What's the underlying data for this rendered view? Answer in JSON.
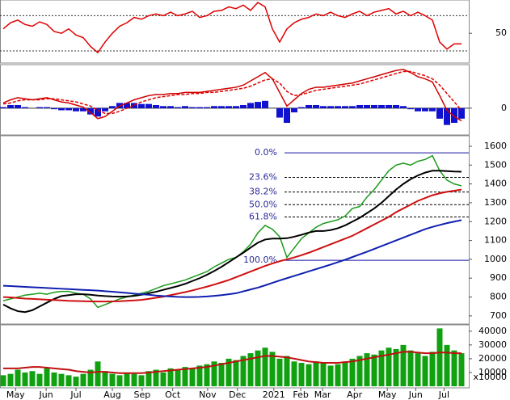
{
  "chart_data": [
    {
      "type": "line",
      "ylim": [
        18,
        86
      ],
      "yticks": [
        50
      ],
      "ref_lines": [
        30,
        70
      ],
      "series": [
        {
          "color": "#e00000",
          "mark": "line",
          "values": [
            55,
            62,
            65,
            60,
            58,
            63,
            60,
            52,
            50,
            55,
            48,
            45,
            35,
            28,
            40,
            50,
            58,
            62,
            68,
            66,
            70,
            72,
            70,
            74,
            70,
            72,
            75,
            68,
            70,
            75,
            76,
            80,
            78,
            82,
            76,
            85,
            80,
            55,
            40,
            55,
            62,
            66,
            68,
            72,
            70,
            74,
            70,
            68,
            72,
            75,
            70,
            74,
            76,
            78,
            72,
            75,
            70,
            74,
            70,
            65,
            40,
            32,
            38,
            38
          ]
        }
      ]
    },
    {
      "type": "line",
      "ylim": [
        -24,
        40
      ],
      "yticks": [
        0
      ],
      "series": [
        {
          "color": "#1010d0",
          "mark": "bar",
          "values": [
            1,
            3,
            3,
            1,
            0,
            1,
            1,
            -1,
            -2,
            -2,
            -3,
            -3,
            -6,
            -8,
            -3,
            2,
            5,
            5,
            5,
            4,
            4,
            3,
            2,
            2,
            1,
            2,
            1,
            1,
            1,
            2,
            2,
            2,
            2,
            3,
            5,
            6,
            7,
            0,
            -9,
            -14,
            -4,
            1,
            3,
            3,
            2,
            2,
            2,
            2,
            2,
            3,
            3,
            3,
            3,
            3,
            3,
            2,
            -1,
            -3,
            -3,
            -3,
            -10,
            -16,
            -14,
            -10
          ]
        },
        {
          "color": "#e00000",
          "mark": "line",
          "style": "dashed",
          "values": [
            4,
            5,
            7,
            8,
            8,
            8,
            9,
            9,
            8,
            7,
            6,
            4,
            2,
            -2,
            -5,
            -5,
            -3,
            0,
            3,
            6,
            8,
            10,
            11,
            12,
            13,
            13,
            14,
            14,
            15,
            15,
            16,
            17,
            18,
            19,
            21,
            24,
            27,
            28,
            24,
            16,
            12,
            13,
            15,
            17,
            18,
            19,
            20,
            21,
            22,
            23,
            25,
            27,
            29,
            31,
            33,
            35,
            35,
            33,
            31,
            28,
            22,
            14,
            6,
            -2
          ]
        },
        {
          "color": "#d00000",
          "mark": "line",
          "values": [
            5,
            8,
            10,
            9,
            8,
            9,
            10,
            8,
            6,
            5,
            3,
            1,
            -4,
            -10,
            -8,
            -3,
            2,
            5,
            8,
            10,
            12,
            13,
            13,
            14,
            14,
            15,
            15,
            15,
            16,
            17,
            18,
            19,
            20,
            22,
            26,
            30,
            34,
            28,
            15,
            2,
            8,
            14,
            18,
            20,
            20,
            21,
            22,
            23,
            24,
            26,
            28,
            30,
            32,
            34,
            36,
            37,
            34,
            30,
            28,
            25,
            12,
            -2,
            -8,
            -12
          ]
        }
      ]
    },
    {
      "type": "line",
      "ylim": [
        661,
        1647
      ],
      "yticks": [
        700,
        800,
        900,
        1000,
        1100,
        1200,
        1300,
        1400,
        1500,
        1600
      ],
      "fib_levels": [
        {
          "label": "0.0%",
          "value": 1565,
          "color": "#1010a0",
          "style": "solid"
        },
        {
          "label": "23.6%",
          "value": 1435,
          "color": "#000000",
          "style": "dashed"
        },
        {
          "label": "38.2%",
          "value": 1357,
          "color": "#000000",
          "style": "dashed"
        },
        {
          "label": "50.0%",
          "value": 1290,
          "color": "#000000",
          "style": "dashed"
        },
        {
          "label": "61.8%",
          "value": 1225,
          "color": "#000000",
          "style": "dashed"
        },
        {
          "label": "100.0%",
          "value": 995,
          "color": "#1010a0",
          "style": "solid"
        }
      ],
      "series": [
        {
          "color": "#1a9a1a",
          "mark": "line",
          "values": [
            780,
            790,
            800,
            810,
            815,
            820,
            815,
            825,
            830,
            830,
            820,
            815,
            790,
            745,
            760,
            775,
            790,
            800,
            810,
            820,
            830,
            845,
            860,
            870,
            880,
            890,
            905,
            920,
            935,
            960,
            980,
            1000,
            1010,
            1040,
            1080,
            1140,
            1180,
            1160,
            1120,
            1010,
            1060,
            1110,
            1140,
            1170,
            1190,
            1200,
            1210,
            1230,
            1270,
            1280,
            1330,
            1370,
            1420,
            1470,
            1500,
            1510,
            1500,
            1520,
            1530,
            1550,
            1470,
            1420,
            1400,
            1390
          ]
        },
        {
          "color": "#000000",
          "mark": "line",
          "width": 2,
          "values": [
            760,
            740,
            725,
            720,
            730,
            750,
            770,
            790,
            805,
            810,
            815,
            815,
            812,
            808,
            805,
            803,
            802,
            803,
            806,
            812,
            820,
            828,
            838,
            848,
            858,
            870,
            885,
            900,
            918,
            938,
            960,
            985,
            1010,
            1035,
            1062,
            1088,
            1105,
            1110,
            1110,
            1112,
            1120,
            1130,
            1142,
            1150,
            1150,
            1155,
            1165,
            1180,
            1200,
            1220,
            1245,
            1270,
            1300,
            1335,
            1370,
            1400,
            1425,
            1445,
            1460,
            1470,
            1470,
            1468,
            1466,
            1465
          ]
        },
        {
          "color": "#d01010",
          "mark": "line",
          "width": 2,
          "values": [
            800,
            798,
            795,
            792,
            790,
            788,
            786,
            784,
            782,
            780,
            779,
            778,
            777,
            776,
            776,
            777,
            778,
            780,
            782,
            785,
            790,
            796,
            802,
            810,
            818,
            826,
            835,
            845,
            855,
            866,
            878,
            890,
            905,
            920,
            935,
            950,
            965,
            978,
            990,
            1000,
            1010,
            1022,
            1035,
            1050,
            1065,
            1080,
            1095,
            1110,
            1125,
            1145,
            1165,
            1185,
            1205,
            1225,
            1250,
            1270,
            1290,
            1310,
            1325,
            1340,
            1350,
            1358,
            1364,
            1370
          ]
        },
        {
          "color": "#1020b0",
          "mark": "line",
          "width": 2,
          "values": [
            860,
            858,
            856,
            854,
            852,
            850,
            848,
            846,
            844,
            842,
            840,
            838,
            836,
            834,
            831,
            828,
            825,
            822,
            818,
            815,
            812,
            808,
            805,
            803,
            801,
            800,
            800,
            801,
            803,
            806,
            810,
            815,
            820,
            830,
            840,
            850,
            862,
            875,
            888,
            900,
            912,
            924,
            936,
            948,
            960,
            972,
            985,
            998,
            1012,
            1026,
            1040,
            1055,
            1070,
            1085,
            1100,
            1115,
            1130,
            1145,
            1160,
            1172,
            1182,
            1192,
            1200,
            1208
          ]
        }
      ]
    },
    {
      "type": "bar",
      "ylim": [
        0,
        44000
      ],
      "yticks": [
        10000,
        20000,
        30000,
        40000
      ],
      "unit_label": "x10000",
      "xticks": [
        {
          "value": 1.7,
          "label": "May"
        },
        {
          "value": 5.9,
          "label": "Jun"
        },
        {
          "value": 10,
          "label": "Jul"
        },
        {
          "value": 15,
          "label": "Aug"
        },
        {
          "value": 19.1,
          "label": "Sep"
        },
        {
          "value": 23.3,
          "label": "Oct"
        },
        {
          "value": 28.1,
          "label": "Nov"
        },
        {
          "value": 32.2,
          "label": "Dec"
        },
        {
          "value": 37.2,
          "label": "2021"
        },
        {
          "value": 40.9,
          "label": "Feb"
        },
        {
          "value": 43.9,
          "label": "Mar"
        },
        {
          "value": 48.3,
          "label": "Apr"
        },
        {
          "value": 52.8,
          "label": "May"
        },
        {
          "value": 56.7,
          "label": "Jun"
        },
        {
          "value": 60.6,
          "label": "Jul"
        }
      ],
      "series": [
        {
          "color": "#10a010",
          "mark": "bar",
          "values": [
            8000,
            9000,
            12000,
            10000,
            11000,
            9000,
            13000,
            10000,
            9000,
            8000,
            7000,
            9000,
            12000,
            18000,
            11000,
            9000,
            8000,
            10000,
            9000,
            8000,
            11000,
            12000,
            10000,
            13000,
            12000,
            14000,
            13000,
            15000,
            16000,
            18000,
            17000,
            20000,
            19000,
            22000,
            24000,
            26000,
            28000,
            25000,
            20000,
            22000,
            18000,
            17000,
            16000,
            18000,
            17000,
            15000,
            16000,
            18000,
            20000,
            22000,
            24000,
            23000,
            26000,
            28000,
            27000,
            30000,
            26000,
            24000,
            22000,
            25000,
            42000,
            30000,
            26000,
            24000
          ]
        },
        {
          "color": "#c01010",
          "mark": "line",
          "width": 2,
          "values": [
            13000,
            13000,
            13000,
            13500,
            14000,
            14000,
            13500,
            13000,
            12500,
            12000,
            11000,
            10500,
            10000,
            10500,
            10500,
            10000,
            9500,
            9500,
            9500,
            9500,
            10000,
            10500,
            11000,
            11500,
            12000,
            12500,
            13000,
            13500,
            14000,
            15000,
            16000,
            17000,
            18000,
            19000,
            20000,
            21000,
            22000,
            22000,
            21500,
            21000,
            20000,
            19000,
            18000,
            17500,
            17000,
            17000,
            17000,
            17500,
            18000,
            19000,
            20000,
            21000,
            22000,
            23000,
            24000,
            25000,
            25000,
            24500,
            24000,
            24000,
            24500,
            24500,
            24000,
            24000
          ]
        }
      ]
    }
  ]
}
